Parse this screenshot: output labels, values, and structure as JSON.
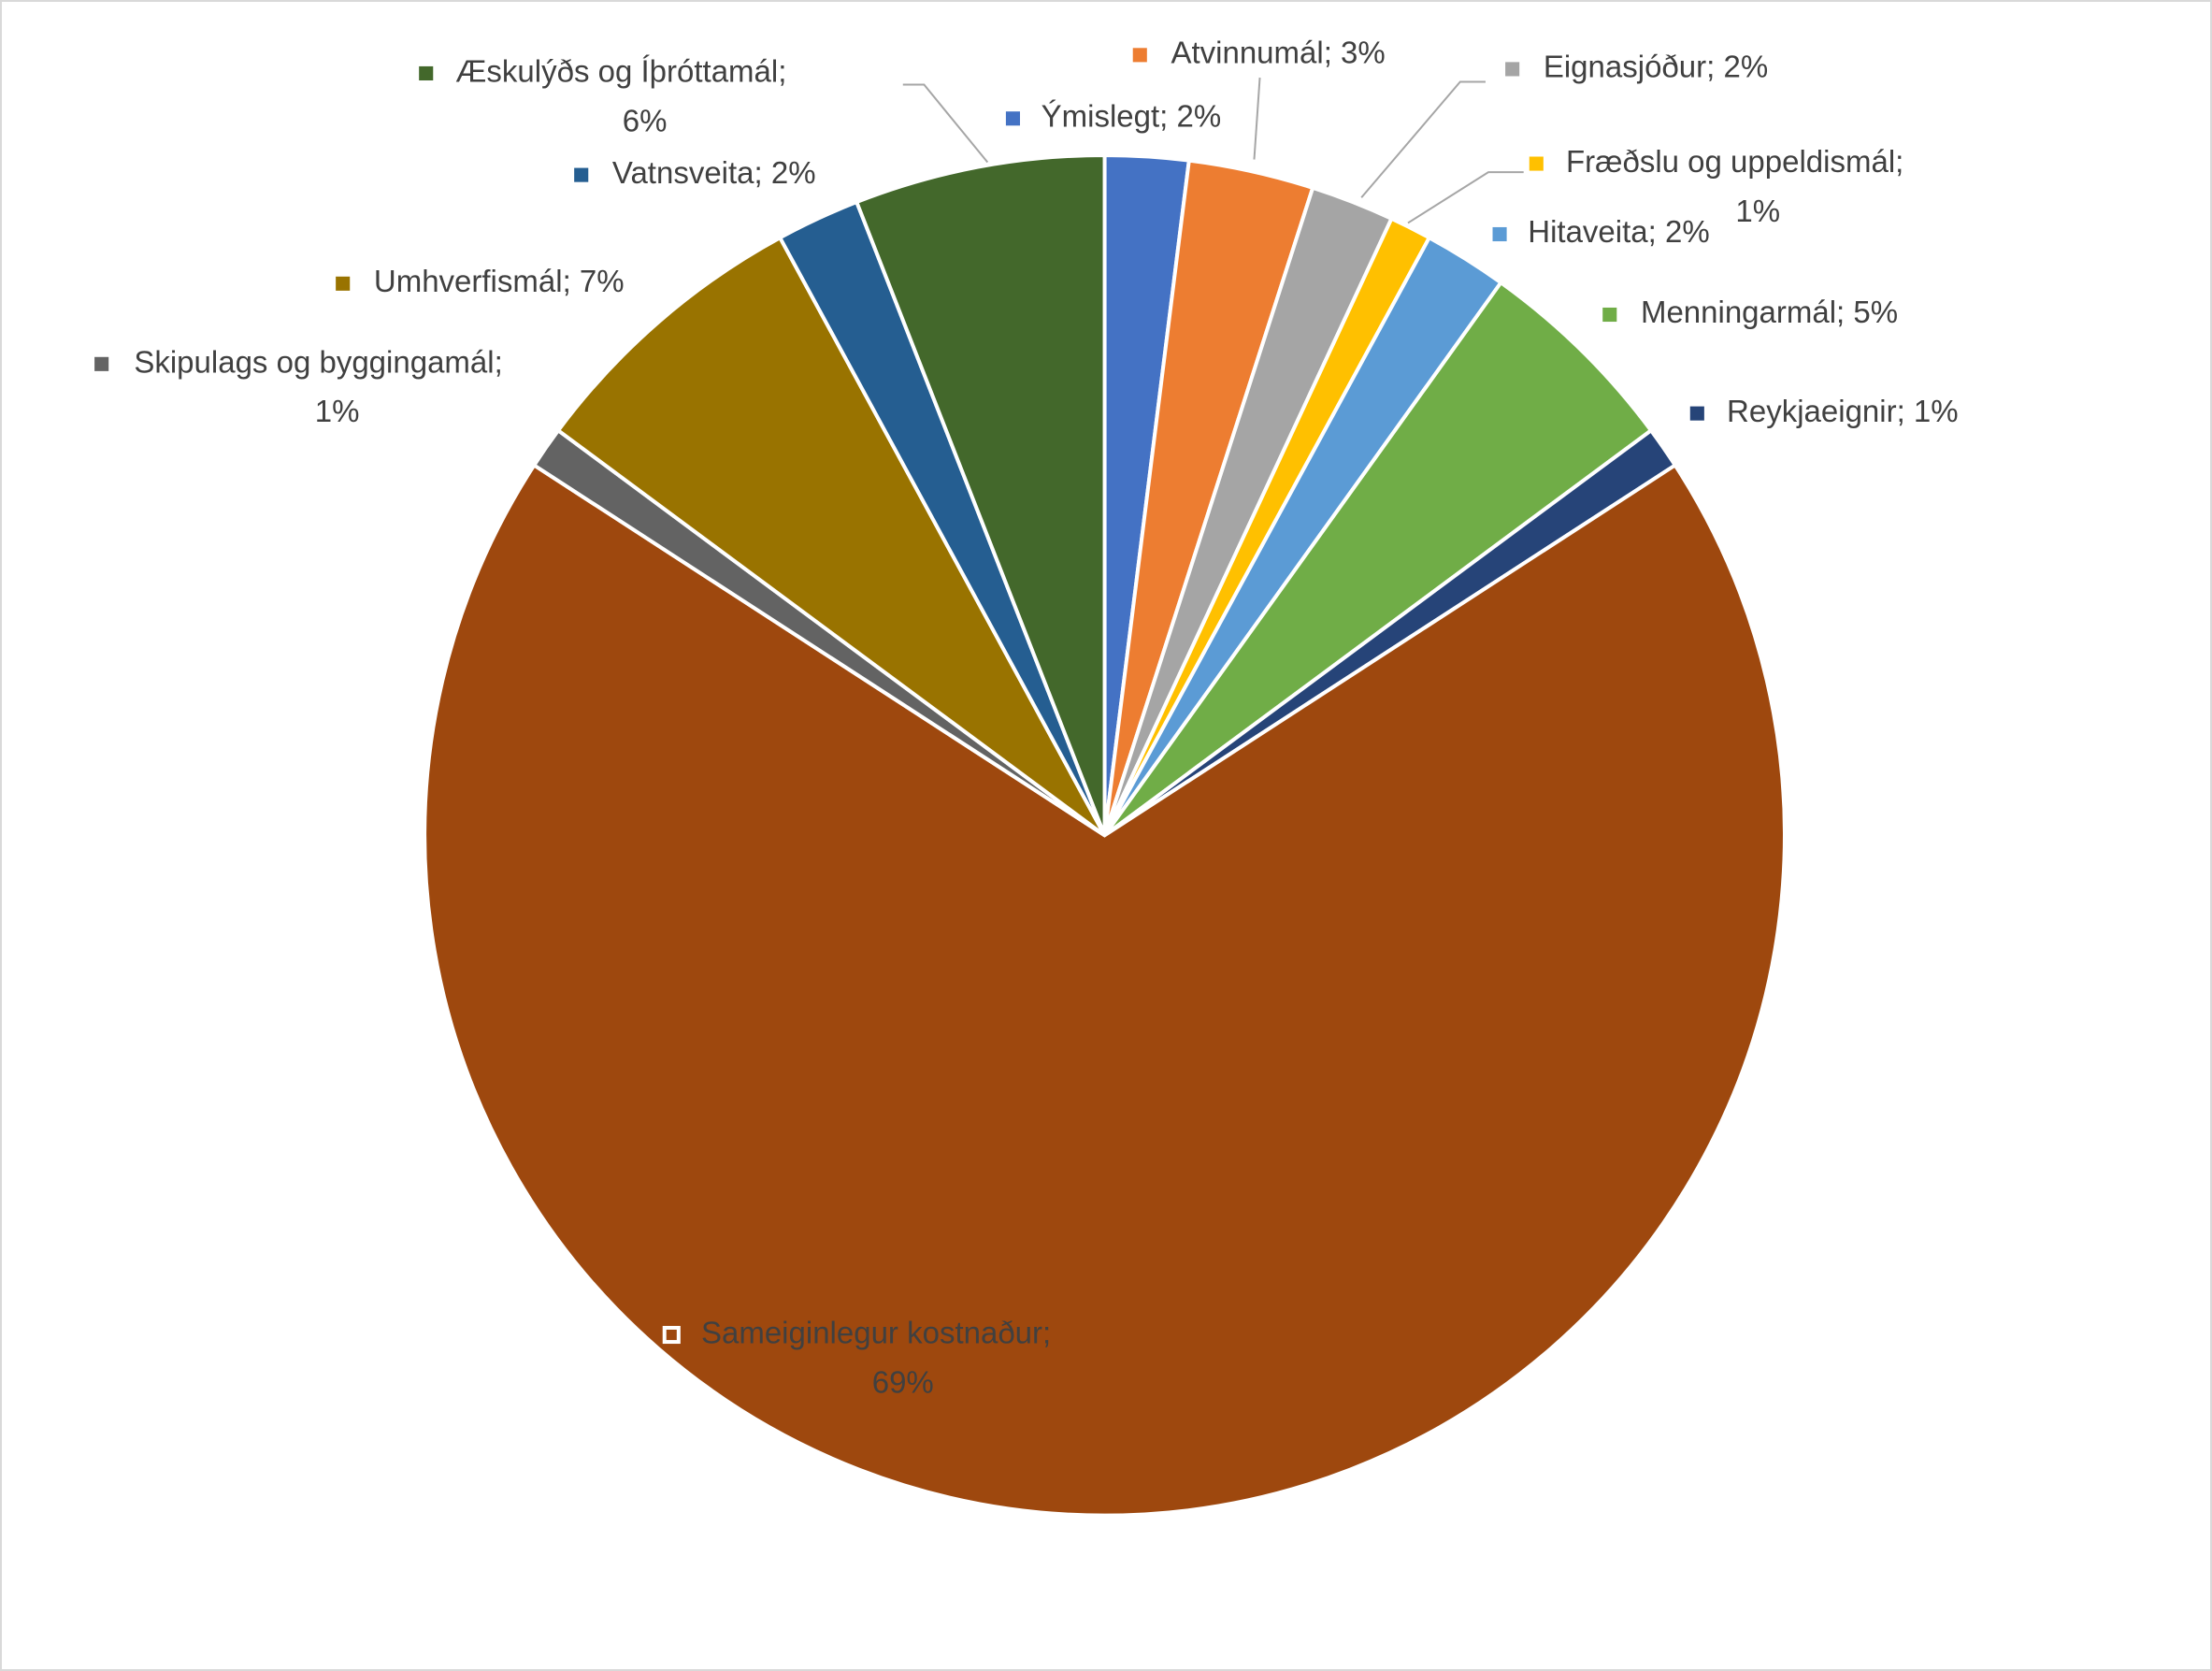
{
  "chart_data": {
    "type": "pie",
    "values": [
      2,
      3,
      2,
      1,
      2,
      5,
      1,
      69,
      1,
      7,
      2,
      6
    ],
    "value_labels": [
      "Ýmislegt; 2%",
      "Atvinnumál; 3%",
      "Eignasjóður; 2%",
      "Fræðslu og uppeldismál; 1%",
      "Hitaveita; 2%",
      "Menningarmál; 5%",
      "Reykjaeignir; 1%",
      "Sameiginlegur kostnaður; 69%",
      "Skipulags og byggingamál; 1%",
      "Umhverfismál; 7%",
      "Vatnsveita; 2%",
      "Æskulýðs og Íþróttamál; 6%"
    ],
    "colors": [
      "#4472c4",
      "#ed7d31",
      "#a5a5a5",
      "#ffc000",
      "#5b9bd5",
      "#70ad47",
      "#264478",
      "#9e480e",
      "#636363",
      "#997300",
      "#255e91",
      "#43682b"
    ]
  }
}
